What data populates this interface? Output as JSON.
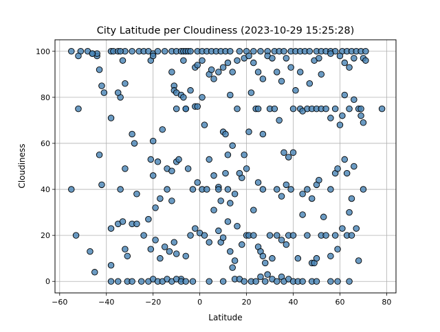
{
  "chart_data": {
    "type": "scatter",
    "title": "City Latitude per Cloudiness (2023-10-29 15:25:28)",
    "xlabel": "Latitude",
    "ylabel": "Cloudiness",
    "xlim": [
      -62,
      84
    ],
    "ylim": [
      -5,
      105
    ],
    "xticks": [
      -60,
      -40,
      -20,
      0,
      20,
      40,
      60,
      80
    ],
    "yticks": [
      0,
      20,
      40,
      60,
      80,
      100
    ],
    "grid": true,
    "marker_color": "#4682b4",
    "marker_edge_color": "#000000",
    "points": [
      [
        -55,
        100
      ],
      [
        -51,
        100
      ],
      [
        -48,
        100
      ],
      [
        -46,
        99
      ],
      [
        -44,
        98
      ],
      [
        -44,
        99
      ],
      [
        -38,
        100
      ],
      [
        -37,
        100
      ],
      [
        -35,
        100
      ],
      [
        -32,
        100
      ],
      [
        -29,
        100
      ],
      [
        -26,
        100
      ],
      [
        -24,
        100
      ],
      [
        -22,
        100
      ],
      [
        -20,
        99
      ],
      [
        -18,
        100
      ],
      [
        -15,
        100
      ],
      [
        -12,
        100
      ],
      [
        -10,
        100
      ],
      [
        -8,
        100
      ],
      [
        -7,
        100
      ],
      [
        -6,
        100
      ],
      [
        -5,
        100
      ],
      [
        -4,
        100
      ],
      [
        -1,
        100
      ],
      [
        1,
        100
      ],
      [
        3,
        100
      ],
      [
        5,
        100
      ],
      [
        7,
        100
      ],
      [
        9,
        100
      ],
      [
        11,
        100
      ],
      [
        13,
        100
      ],
      [
        17,
        100
      ],
      [
        20,
        100
      ],
      [
        23,
        100
      ],
      [
        26,
        100
      ],
      [
        29,
        100
      ],
      [
        32,
        100
      ],
      [
        34,
        100
      ],
      [
        36,
        100
      ],
      [
        39,
        100
      ],
      [
        41,
        100
      ],
      [
        43,
        100
      ],
      [
        45,
        100
      ],
      [
        47,
        100
      ],
      [
        50,
        100
      ],
      [
        52,
        100
      ],
      [
        54,
        100
      ],
      [
        56,
        100
      ],
      [
        58,
        100
      ],
      [
        61,
        100
      ],
      [
        63,
        100
      ],
      [
        65,
        100
      ],
      [
        67,
        100
      ],
      [
        69,
        100
      ],
      [
        71,
        100
      ],
      [
        -52,
        98
      ],
      [
        -46,
        99
      ],
      [
        -43,
        92
      ],
      [
        -42,
        85
      ],
      [
        -41,
        82
      ],
      [
        -34,
        80
      ],
      [
        -34,
        100
      ],
      [
        -33,
        96
      ],
      [
        -21,
        96
      ],
      [
        -20,
        98
      ],
      [
        -12,
        91
      ],
      [
        -11,
        85
      ],
      [
        -11,
        83
      ],
      [
        -10,
        82
      ],
      [
        -7,
        96
      ],
      [
        -6,
        75
      ],
      [
        -2,
        93
      ],
      [
        -1,
        94
      ],
      [
        1,
        96
      ],
      [
        4,
        90
      ],
      [
        5,
        92
      ],
      [
        6,
        88
      ],
      [
        8,
        91
      ],
      [
        10,
        93
      ],
      [
        12,
        95
      ],
      [
        14,
        91
      ],
      [
        16,
        96
      ],
      [
        19,
        97
      ],
      [
        21,
        98
      ],
      [
        23,
        95
      ],
      [
        25,
        91
      ],
      [
        27,
        88
      ],
      [
        29,
        98
      ],
      [
        31,
        97
      ],
      [
        33,
        91
      ],
      [
        35,
        87
      ],
      [
        37,
        97
      ],
      [
        39,
        93
      ],
      [
        43,
        91
      ],
      [
        47,
        86
      ],
      [
        49,
        96
      ],
      [
        51,
        97
      ],
      [
        52,
        90
      ],
      [
        56,
        99
      ],
      [
        60,
        98
      ],
      [
        62,
        95
      ],
      [
        64,
        93
      ],
      [
        66,
        97
      ],
      [
        70,
        97
      ],
      [
        71,
        96
      ],
      [
        -52,
        75
      ],
      [
        -38,
        71
      ],
      [
        -35,
        82
      ],
      [
        -32,
        86
      ],
      [
        -29,
        64
      ],
      [
        -28,
        60
      ],
      [
        -20,
        46
      ],
      [
        -18,
        52
      ],
      [
        -16,
        66
      ],
      [
        -14,
        49
      ],
      [
        -12,
        48
      ],
      [
        -10,
        75
      ],
      [
        -8,
        81
      ],
      [
        -7,
        80
      ],
      [
        -6,
        75
      ],
      [
        -4,
        83
      ],
      [
        -2,
        76
      ],
      [
        -1,
        76
      ],
      [
        1,
        80
      ],
      [
        2,
        68
      ],
      [
        8,
        41
      ],
      [
        10,
        65
      ],
      [
        11,
        64
      ],
      [
        12,
        55
      ],
      [
        13,
        81
      ],
      [
        14,
        59
      ],
      [
        16,
        75
      ],
      [
        18,
        45
      ],
      [
        21,
        65
      ],
      [
        22,
        82
      ],
      [
        24,
        75
      ],
      [
        25,
        75
      ],
      [
        27,
        64
      ],
      [
        30,
        75
      ],
      [
        32,
        75
      ],
      [
        34,
        70
      ],
      [
        36,
        56
      ],
      [
        38,
        54
      ],
      [
        40,
        75
      ],
      [
        41,
        83
      ],
      [
        43,
        75
      ],
      [
        44,
        74
      ],
      [
        46,
        75
      ],
      [
        48,
        75
      ],
      [
        50,
        75
      ],
      [
        52,
        75
      ],
      [
        54,
        75
      ],
      [
        56,
        71
      ],
      [
        58,
        75
      ],
      [
        60,
        68
      ],
      [
        61,
        72
      ],
      [
        62,
        81
      ],
      [
        64,
        75
      ],
      [
        66,
        79
      ],
      [
        68,
        75
      ],
      [
        69,
        75
      ],
      [
        69,
        72
      ],
      [
        70,
        69
      ],
      [
        78,
        75
      ],
      [
        -55,
        40
      ],
      [
        -43,
        55
      ],
      [
        -42,
        42
      ],
      [
        -34,
        40
      ],
      [
        -32,
        49
      ],
      [
        -27,
        38
      ],
      [
        -21,
        53
      ],
      [
        -20,
        61
      ],
      [
        -19,
        32
      ],
      [
        -17,
        36
      ],
      [
        -14,
        40
      ],
      [
        -12,
        35
      ],
      [
        -10,
        52
      ],
      [
        -9,
        53
      ],
      [
        -5,
        49
      ],
      [
        -3,
        40
      ],
      [
        -1,
        43
      ],
      [
        1,
        40
      ],
      [
        3,
        40
      ],
      [
        4,
        53
      ],
      [
        6,
        46
      ],
      [
        8,
        40
      ],
      [
        9,
        35
      ],
      [
        11,
        47
      ],
      [
        12,
        40
      ],
      [
        13,
        34
      ],
      [
        15,
        38
      ],
      [
        17,
        47
      ],
      [
        19,
        55
      ],
      [
        20,
        49
      ],
      [
        23,
        31
      ],
      [
        25,
        43
      ],
      [
        27,
        40
      ],
      [
        33,
        40
      ],
      [
        35,
        37
      ],
      [
        37,
        42
      ],
      [
        39,
        40
      ],
      [
        40,
        56
      ],
      [
        44,
        38
      ],
      [
        46,
        40
      ],
      [
        48,
        36
      ],
      [
        50,
        42
      ],
      [
        51,
        44
      ],
      [
        53,
        28
      ],
      [
        56,
        40
      ],
      [
        58,
        47
      ],
      [
        59,
        49
      ],
      [
        62,
        53
      ],
      [
        63,
        47
      ],
      [
        65,
        36
      ],
      [
        66,
        50
      ],
      [
        70,
        40
      ],
      [
        -53,
        20
      ],
      [
        -45,
        4
      ],
      [
        -47,
        13
      ],
      [
        -38,
        23
      ],
      [
        -38,
        7
      ],
      [
        -35,
        25
      ],
      [
        -33,
        26
      ],
      [
        -32,
        14
      ],
      [
        -31,
        11
      ],
      [
        -29,
        25
      ],
      [
        -27,
        25
      ],
      [
        -24,
        20
      ],
      [
        -22,
        27
      ],
      [
        -21,
        14
      ],
      [
        -19,
        18
      ],
      [
        -17,
        10
      ],
      [
        -15,
        15
      ],
      [
        -13,
        13
      ],
      [
        -11,
        17
      ],
      [
        -10,
        12
      ],
      [
        -8,
        1
      ],
      [
        -6,
        11
      ],
      [
        -4,
        20
      ],
      [
        -2,
        23
      ],
      [
        0,
        21
      ],
      [
        2,
        20
      ],
      [
        4,
        17
      ],
      [
        6,
        31
      ],
      [
        8,
        22
      ],
      [
        9,
        17
      ],
      [
        10,
        19
      ],
      [
        12,
        26
      ],
      [
        13,
        13
      ],
      [
        14,
        6
      ],
      [
        15,
        9
      ],
      [
        16,
        24
      ],
      [
        18,
        16
      ],
      [
        20,
        20
      ],
      [
        21,
        20
      ],
      [
        23,
        20
      ],
      [
        25,
        15
      ],
      [
        26,
        13
      ],
      [
        27,
        11
      ],
      [
        28,
        8
      ],
      [
        30,
        20
      ],
      [
        31,
        10
      ],
      [
        33,
        20
      ],
      [
        35,
        18
      ],
      [
        37,
        16
      ],
      [
        38,
        20
      ],
      [
        40,
        20
      ],
      [
        42,
        10
      ],
      [
        44,
        29
      ],
      [
        46,
        20
      ],
      [
        48,
        8
      ],
      [
        49,
        8
      ],
      [
        50,
        10
      ],
      [
        52,
        20
      ],
      [
        54,
        20
      ],
      [
        56,
        11
      ],
      [
        58,
        20
      ],
      [
        59,
        14
      ],
      [
        61,
        23
      ],
      [
        63,
        20
      ],
      [
        64,
        30
      ],
      [
        65,
        20
      ],
      [
        67,
        23
      ],
      [
        68,
        9
      ],
      [
        -38,
        0
      ],
      [
        -35,
        0
      ],
      [
        -31,
        0
      ],
      [
        -29,
        0
      ],
      [
        -25,
        0
      ],
      [
        -22,
        0
      ],
      [
        -20,
        1
      ],
      [
        -18,
        0
      ],
      [
        -16,
        0
      ],
      [
        -14,
        1
      ],
      [
        -12,
        0
      ],
      [
        -10,
        1
      ],
      [
        -8,
        0
      ],
      [
        -6,
        0
      ],
      [
        -3,
        0
      ],
      [
        4,
        0
      ],
      [
        10,
        0
      ],
      [
        15,
        1
      ],
      [
        17,
        1
      ],
      [
        19,
        0
      ],
      [
        22,
        0
      ],
      [
        24,
        0
      ],
      [
        26,
        2
      ],
      [
        28,
        0
      ],
      [
        29,
        3
      ],
      [
        31,
        1
      ],
      [
        33,
        0
      ],
      [
        35,
        2
      ],
      [
        36,
        0
      ],
      [
        38,
        1
      ],
      [
        40,
        0
      ],
      [
        42,
        0
      ],
      [
        44,
        0
      ],
      [
        48,
        0
      ],
      [
        50,
        0
      ],
      [
        56,
        0
      ],
      [
        59,
        0
      ],
      [
        64,
        0
      ]
    ]
  }
}
